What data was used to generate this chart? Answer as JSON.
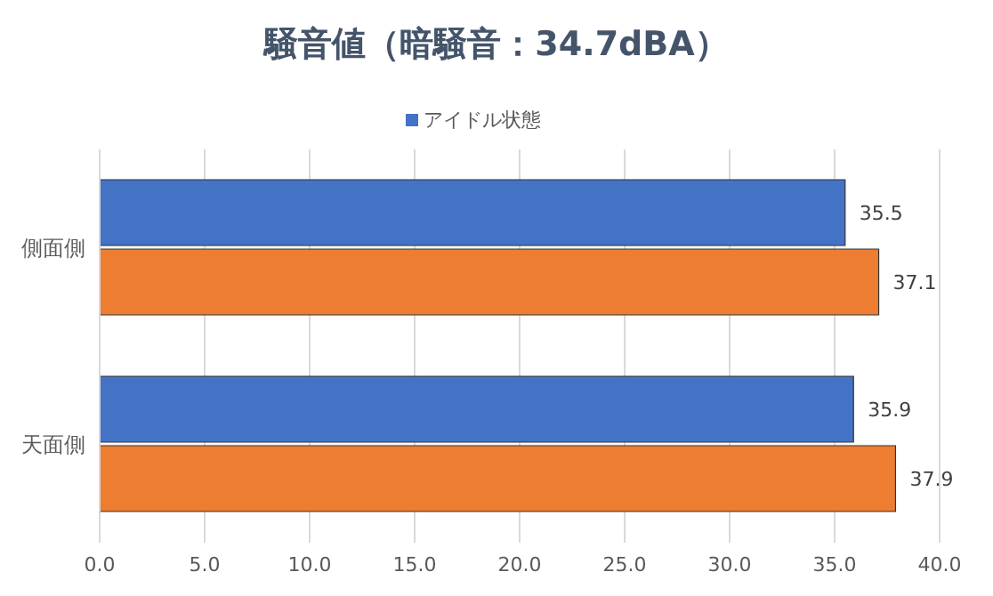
{
  "chart_data": {
    "type": "bar",
    "orientation": "horizontal",
    "title": "騒音値（暗騒音：34.7dBA）",
    "categories": [
      "側面側",
      "天面側"
    ],
    "series": [
      {
        "name": "アイドル状態",
        "color": "#4472c4",
        "values": [
          35.5,
          35.9
        ]
      },
      {
        "color": "#ed7d31",
        "values": [
          37.1,
          37.9
        ]
      }
    ],
    "xlim": [
      0,
      40
    ],
    "xticks": [
      {
        "value": 0,
        "label": "0.0"
      },
      {
        "value": 5,
        "label": "5.0"
      },
      {
        "value": 10,
        "label": "10.0"
      },
      {
        "value": 15,
        "label": "15.0"
      },
      {
        "value": 20,
        "label": "20.0"
      },
      {
        "value": 25,
        "label": "25.0"
      },
      {
        "value": 30,
        "label": "30.0"
      },
      {
        "value": 35,
        "label": "35.0"
      },
      {
        "value": 40,
        "label": "40.0"
      }
    ],
    "grid": "x",
    "legend": "top",
    "data_labels": true
  }
}
